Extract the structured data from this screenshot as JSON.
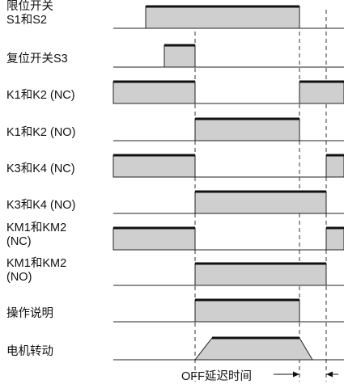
{
  "rows": [
    {
      "name": "limit-switch",
      "label_lines": [
        "限位开关",
        "S1和S2"
      ],
      "pulses": [
        [
          180,
          370
        ]
      ]
    },
    {
      "name": "reset-switch",
      "label_lines": [
        "复位开关S3"
      ],
      "pulses": [
        [
          203,
          241
        ]
      ]
    },
    {
      "name": "k1-k2-nc",
      "label_lines": [
        "K1和K2 (NC)"
      ],
      "pulses": [
        [
          140,
          241
        ],
        [
          370,
          425
        ]
      ]
    },
    {
      "name": "k1-k2-no",
      "label_lines": [
        "K1和K2 (NO)"
      ],
      "pulses": [
        [
          241,
          370
        ]
      ]
    },
    {
      "name": "k3-k4-nc",
      "label_lines": [
        "K3和K4 (NC)"
      ],
      "pulses": [
        [
          140,
          241
        ],
        [
          403,
          425
        ]
      ]
    },
    {
      "name": "k3-k4-no",
      "label_lines": [
        "K3和K4 (NO)"
      ],
      "pulses": [
        [
          241,
          403
        ]
      ]
    },
    {
      "name": "km1-km2-nc",
      "label_lines": [
        "KM1和KM2",
        "(NC)"
      ],
      "pulses": [
        [
          140,
          241
        ],
        [
          403,
          425
        ]
      ]
    },
    {
      "name": "km1-km2-no",
      "label_lines": [
        "KM1和KM2",
        "(NO)"
      ],
      "pulses": [
        [
          241,
          403
        ]
      ]
    },
    {
      "name": "operation-note",
      "label_lines": [
        "操作说明"
      ],
      "pulses": [
        [
          241,
          370
        ]
      ]
    },
    {
      "name": "motor-running",
      "label_lines": [
        "电机转动"
      ],
      "trapezoid": [
        241,
        262,
        370,
        386
      ]
    }
  ],
  "guides": [
    241,
    370,
    403
  ],
  "delay_label": "OFF延迟时间",
  "colors": {
    "pulse_fill": "#cfcfcf",
    "line": "#222222"
  }
}
